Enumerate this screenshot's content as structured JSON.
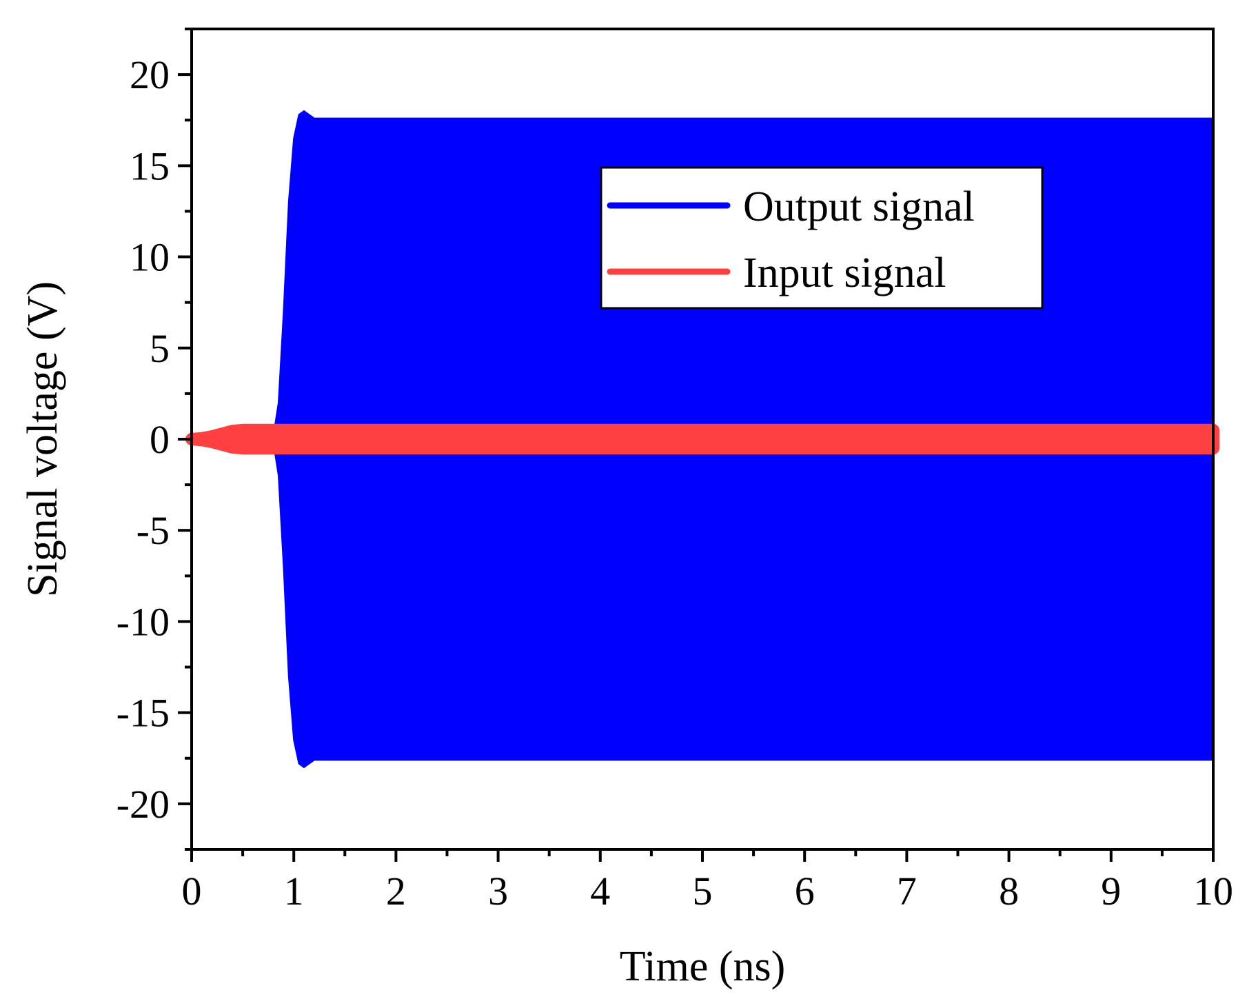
{
  "chart_data": {
    "type": "line",
    "xlabel": "Time (ns)",
    "ylabel": "Signal voltage (V)",
    "xlim": [
      0,
      10
    ],
    "ylim": [
      -22.5,
      22.5
    ],
    "xticks": [
      0,
      1,
      2,
      3,
      4,
      5,
      6,
      7,
      8,
      9,
      10
    ],
    "xtick_labels": [
      "0",
      "1",
      "2",
      "3",
      "4",
      "5",
      "6",
      "7",
      "8",
      "9",
      "10"
    ],
    "yticks": [
      20,
      15,
      10,
      5,
      0,
      -5,
      -10,
      -15,
      -20
    ],
    "ytick_labels": [
      "20",
      "15",
      "10",
      "5",
      "0",
      "-5",
      "-10",
      "-15",
      "-20"
    ],
    "grid": false,
    "legend_position": "upper-right",
    "series": [
      {
        "name": "Output signal",
        "color": "#0000ff",
        "envelope": {
          "x": [
            0,
            0.8,
            0.85,
            0.9,
            0.95,
            1.0,
            1.05,
            1.1,
            1.15,
            1.2,
            1.3,
            10
          ],
          "upper": [
            0,
            0.2,
            2.0,
            7.0,
            13.0,
            16.5,
            17.8,
            18.0,
            17.8,
            17.6,
            17.6,
            17.6
          ],
          "lower": [
            0,
            -0.2,
            -2.0,
            -7.0,
            -13.0,
            -16.5,
            -17.8,
            -18.0,
            -17.8,
            -17.6,
            -17.6,
            -17.6
          ]
        }
      },
      {
        "name": "Input signal",
        "color": "#ff4040",
        "envelope": {
          "x": [
            0,
            0.1,
            0.2,
            0.3,
            0.4,
            0.5,
            10
          ],
          "upper": [
            0,
            0.05,
            0.15,
            0.3,
            0.45,
            0.5,
            0.5
          ],
          "lower": [
            0,
            -0.05,
            -0.15,
            -0.3,
            -0.45,
            -0.5,
            -0.5
          ]
        }
      }
    ]
  }
}
